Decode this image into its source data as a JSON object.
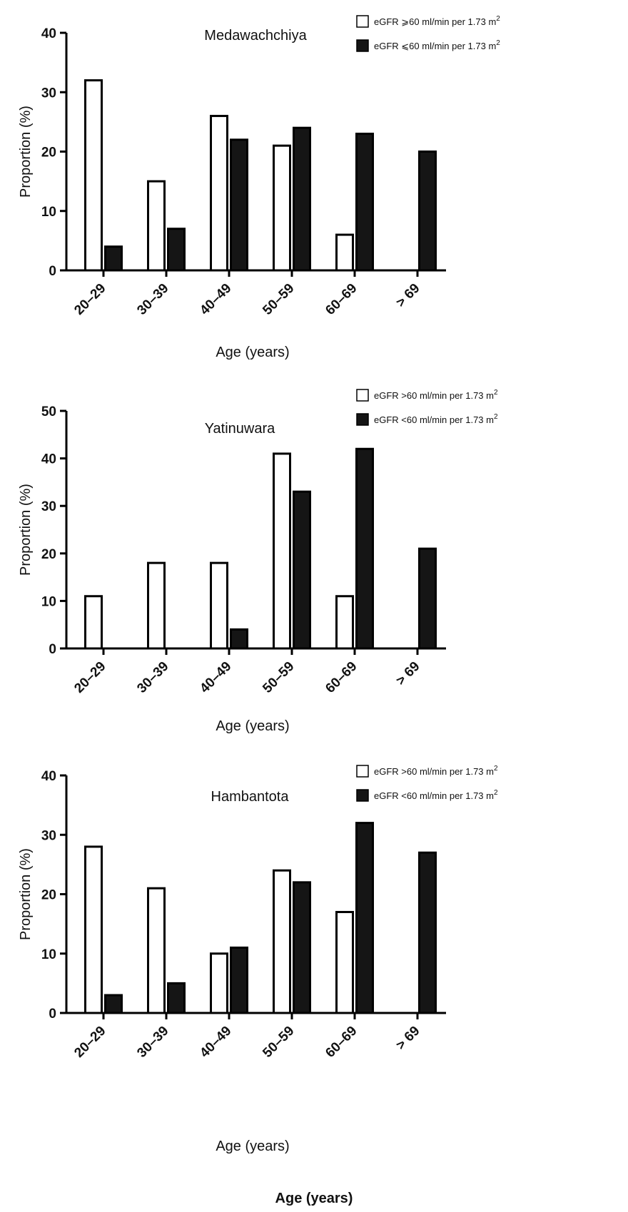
{
  "colors": {
    "egfr_high": "#ffffff",
    "egfr_low": "#151515",
    "axis": "#000000"
  },
  "legend_superscript": "2",
  "bottom_caption": "Age (years)",
  "chart_data": [
    {
      "type": "bar",
      "title": "Medawachchiya",
      "xlabel": "Age (years)",
      "ylabel": "Proportion (%)",
      "ylim": [
        0,
        40
      ],
      "yticks": [
        0,
        10,
        20,
        30,
        40
      ],
      "categories": [
        "20–29",
        "30–39",
        "40–49",
        "50–59",
        "60–69",
        "> 69"
      ],
      "series": [
        {
          "name": "eGFR ⩾60 ml/min per 1.73 m",
          "fill": "#ffffff",
          "values": [
            32,
            15,
            26,
            21,
            6,
            0
          ]
        },
        {
          "name": "eGFR ⩽60 ml/min per 1.73 m",
          "fill": "#151515",
          "values": [
            4,
            7,
            22,
            24,
            23,
            20
          ]
        }
      ],
      "legend": "top-right",
      "grid": false
    },
    {
      "type": "bar",
      "title": "Yatinuwara",
      "xlabel": "Age (years)",
      "ylabel": "Proportion (%)",
      "ylim": [
        0,
        50
      ],
      "yticks": [
        0,
        10,
        20,
        30,
        40,
        50
      ],
      "categories": [
        "20–29",
        "30–39",
        "40–49",
        "50–59",
        "60–69",
        "> 69"
      ],
      "series": [
        {
          "name": "eGFR >60 ml/min per 1.73 m",
          "fill": "#ffffff",
          "values": [
            11,
            18,
            18,
            41,
            11,
            0
          ]
        },
        {
          "name": "eGFR <60 ml/min per 1.73 m",
          "fill": "#151515",
          "values": [
            0,
            0,
            4,
            33,
            42,
            21
          ]
        }
      ],
      "legend": "top-right",
      "grid": false
    },
    {
      "type": "bar",
      "title": "Hambantota",
      "xlabel": "Age (years)",
      "ylabel": "Proportion (%)",
      "ylim": [
        0,
        40
      ],
      "yticks": [
        0,
        10,
        20,
        30,
        40
      ],
      "categories": [
        "20–29",
        "30–39",
        "40–49",
        "50–59",
        "60–69",
        "> 69"
      ],
      "series": [
        {
          "name": "eGFR >60 ml/min per 1.73 m",
          "fill": "#ffffff",
          "values": [
            28,
            21,
            10,
            24,
            17,
            0
          ]
        },
        {
          "name": "eGFR <60 ml/min per 1.73 m",
          "fill": "#151515",
          "values": [
            3,
            5,
            11,
            22,
            32,
            27
          ]
        }
      ],
      "legend": "top-right",
      "grid": false
    }
  ]
}
